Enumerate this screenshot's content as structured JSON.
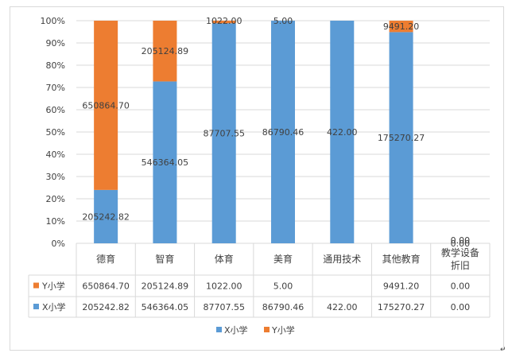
{
  "chart_data": {
    "type": "bar",
    "stacked": "percent",
    "categories": [
      "德育",
      "智育",
      "体育",
      "美育",
      "通用技术",
      "其他教育",
      "教学设备折旧"
    ],
    "series": [
      {
        "name": "X小学",
        "color": "#5B9BD5",
        "values": [
          205242.82,
          546364.05,
          87707.55,
          86790.46,
          422.0,
          175270.27,
          0.0
        ],
        "labels": [
          "205242.82",
          "546364.05",
          "87707.55",
          "86790.46",
          "422.00",
          "175270.27",
          "0.00"
        ]
      },
      {
        "name": "Y小学",
        "color": "#ED7D31",
        "values": [
          650864.7,
          205124.89,
          1022.0,
          5.0,
          null,
          9491.2,
          0.0
        ],
        "labels": [
          "650864.70",
          "205124.89",
          "1022.00",
          "5.00",
          "",
          "9491.20",
          "0.00"
        ]
      }
    ],
    "ylim": [
      0,
      100
    ],
    "yticks": [
      "0%",
      "10%",
      "20%",
      "30%",
      "40%",
      "50%",
      "60%",
      "70%",
      "80%",
      "90%",
      "100%"
    ],
    "legend": "bottom",
    "data_table": true,
    "grid": true
  }
}
